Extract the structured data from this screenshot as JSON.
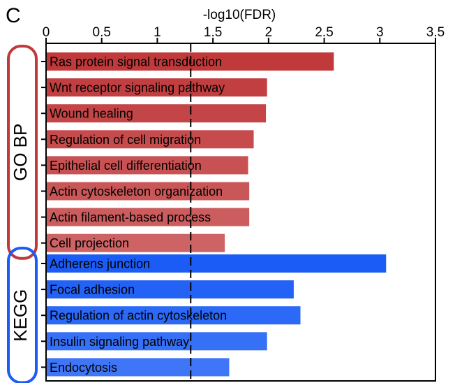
{
  "panel_letter": "C",
  "chart_data": {
    "type": "bar",
    "orientation": "horizontal",
    "xlabel": "-log10(FDR)",
    "xlim": [
      0,
      3.5
    ],
    "xticks": [
      "0",
      "0.5",
      "1",
      "1.5",
      "2",
      "2.5",
      "3",
      "3.5"
    ],
    "threshold": 1.3,
    "groups": [
      {
        "name": "GO BP",
        "color": "#c0393b",
        "categories": [
          "Ras protein signal transduction",
          "Wnt receptor signaling pathway",
          "Wound healing",
          "Regulation of cell migration",
          "Epithelial cell differentiation",
          "Actin cytoskeleton organization",
          "Actin filament-based process",
          "Cell projection"
        ],
        "values": [
          2.58,
          1.98,
          1.97,
          1.86,
          1.81,
          1.82,
          1.82,
          1.6
        ],
        "opacity": [
          1.0,
          0.97,
          0.94,
          0.91,
          0.88,
          0.85,
          0.82,
          0.79
        ]
      },
      {
        "name": "KEGG",
        "color": "#1a5cf5",
        "categories": [
          "Adherens junction",
          "Focal adhesion",
          "Regulation of actin cytoskeleton",
          "Insulin signaling pathway",
          "Endocytosis"
        ],
        "values": [
          3.05,
          2.22,
          2.28,
          1.98,
          1.64
        ],
        "opacity": [
          1.0,
          0.96,
          0.92,
          0.88,
          0.84
        ]
      }
    ]
  }
}
